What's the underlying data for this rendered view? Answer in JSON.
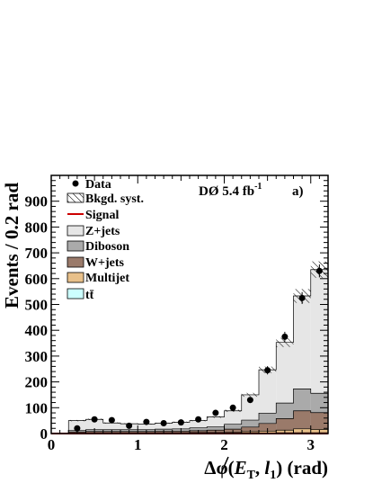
{
  "chart_data": {
    "type": "bar",
    "stacked": true,
    "xlabel_parts": [
      "Δφ(",
      "E",
      "T",
      ", ",
      "l",
      "1",
      ") (rad)"
    ],
    "ylabel": "Events / 0.2 rad",
    "xlim": [
      0,
      3.2
    ],
    "ylim": [
      0,
      1000
    ],
    "x_ticks": [
      "0",
      "1",
      "2",
      "3"
    ],
    "y_ticks": [
      "0",
      "100",
      "200",
      "300",
      "400",
      "500",
      "600",
      "700",
      "800",
      "900"
    ],
    "bin_edges": [
      0,
      0.2,
      0.4,
      0.6,
      0.8,
      1.0,
      1.2,
      1.4,
      1.6,
      1.8,
      2.0,
      2.2,
      2.4,
      2.6,
      2.8,
      3.0,
      3.2
    ],
    "experiment_label": "DØ 5.4 fb",
    "experiment_label_sup": "-1",
    "panel_label": "a)",
    "legend_position": "top-left",
    "series": [
      {
        "name": "tt̄",
        "key": "ttbar",
        "color": "#ccffff",
        "values": [
          0,
          1,
          1,
          1,
          1,
          1,
          1,
          1,
          1,
          1,
          1,
          2,
          2,
          3,
          3,
          3
        ]
      },
      {
        "name": "Multijet",
        "key": "multijet",
        "color": "#e8c08a",
        "values": [
          0,
          1,
          2,
          2,
          2,
          2,
          2,
          2,
          3,
          3,
          4,
          5,
          7,
          10,
          15,
          13
        ]
      },
      {
        "name": "W+jets",
        "key": "wjets",
        "color": "#9a7a6a",
        "values": [
          0,
          4,
          5,
          5,
          5,
          5,
          6,
          6,
          7,
          9,
          12,
          18,
          30,
          45,
          70,
          65
        ]
      },
      {
        "name": "Diboson",
        "key": "diboson",
        "color": "#aaaaaa",
        "values": [
          0,
          6,
          7,
          7,
          7,
          7,
          8,
          9,
          11,
          13,
          19,
          27,
          40,
          60,
          85,
          75
        ]
      },
      {
        "name": "Z+jets",
        "key": "zjets",
        "color": "#e6e6e6",
        "values": [
          0,
          38,
          40,
          26,
          23,
          22,
          23,
          26,
          28,
          38,
          52,
          98,
          168,
          235,
          360,
          479
        ]
      }
    ],
    "bkgd_syst": {
      "name": "Bkgd. syst.",
      "rel_error": 0.05
    },
    "signal": {
      "name": "Signal",
      "color": "#cc0000",
      "values": [
        0,
        0,
        0,
        0,
        0,
        0,
        0,
        0,
        0,
        0,
        0,
        0,
        0,
        0,
        0,
        0
      ]
    },
    "data": {
      "name": "Data",
      "x": [
        0.3,
        0.5,
        0.7,
        0.9,
        1.1,
        1.3,
        1.5,
        1.7,
        1.9,
        2.1,
        2.3,
        2.5,
        2.7,
        2.9,
        3.1
      ],
      "y": [
        20,
        55,
        52,
        30,
        45,
        40,
        43,
        55,
        80,
        100,
        130,
        245,
        375,
        525,
        630
      ],
      "err": [
        4,
        7,
        7,
        6,
        7,
        6,
        7,
        7,
        9,
        10,
        11,
        16,
        19,
        23,
        25
      ]
    }
  }
}
